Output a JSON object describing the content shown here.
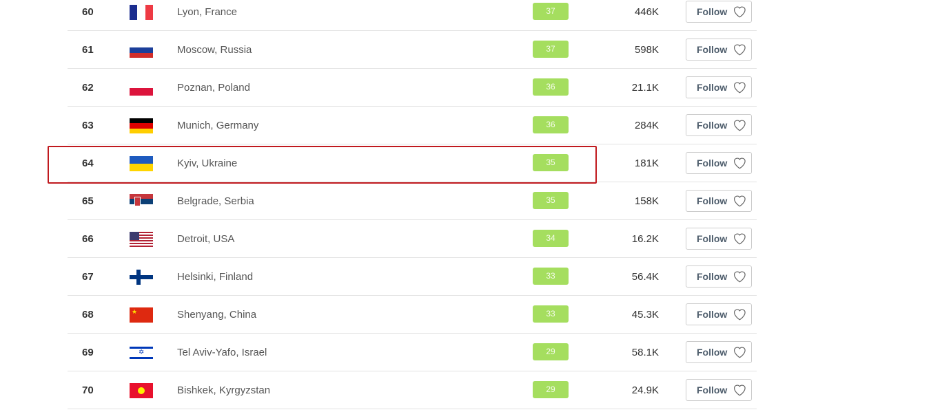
{
  "highlight_color": "#c0191e",
  "follow_label": "Follow",
  "rows": [
    {
      "rank": "60",
      "city": "Lyon, France",
      "score": "37",
      "population": "446K",
      "flag": "france"
    },
    {
      "rank": "61",
      "city": "Moscow, Russia",
      "score": "37",
      "population": "598K",
      "flag": "russia"
    },
    {
      "rank": "62",
      "city": "Poznan, Poland",
      "score": "36",
      "population": "21.1K",
      "flag": "poland"
    },
    {
      "rank": "63",
      "city": "Munich, Germany",
      "score": "36",
      "population": "284K",
      "flag": "germany"
    },
    {
      "rank": "64",
      "city": "Kyiv, Ukraine",
      "score": "35",
      "population": "181K",
      "flag": "ukraine",
      "highlighted": true
    },
    {
      "rank": "65",
      "city": "Belgrade, Serbia",
      "score": "35",
      "population": "158K",
      "flag": "serbia"
    },
    {
      "rank": "66",
      "city": "Detroit, USA",
      "score": "34",
      "population": "16.2K",
      "flag": "usa"
    },
    {
      "rank": "67",
      "city": "Helsinki, Finland",
      "score": "33",
      "population": "56.4K",
      "flag": "finland"
    },
    {
      "rank": "68",
      "city": "Shenyang, China",
      "score": "33",
      "population": "45.3K",
      "flag": "china"
    },
    {
      "rank": "69",
      "city": "Tel Aviv-Yafo, Israel",
      "score": "29",
      "population": "58.1K",
      "flag": "israel"
    },
    {
      "rank": "70",
      "city": "Bishkek, Kyrgyzstan",
      "score": "29",
      "population": "24.9K",
      "flag": "kyrgyzstan"
    }
  ]
}
